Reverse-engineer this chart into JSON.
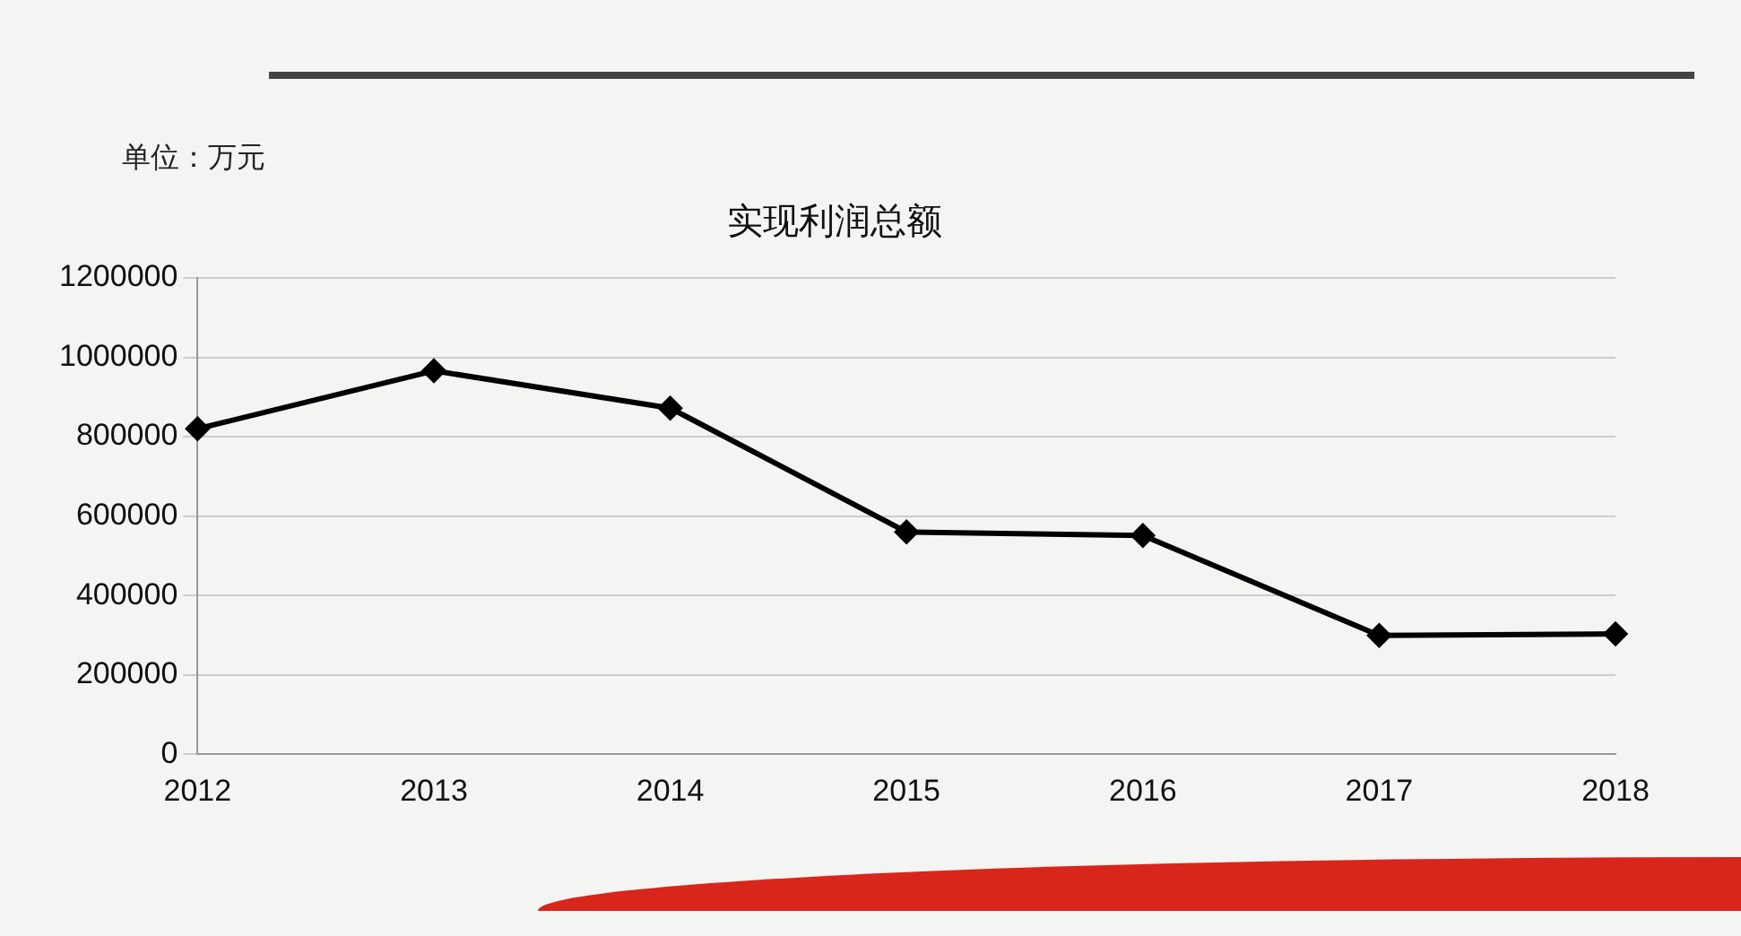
{
  "chart_data": {
    "type": "line",
    "title": "实现利润总额",
    "annotations": [
      "单位：万元"
    ],
    "categories": [
      "2012",
      "2013",
      "2014",
      "2015",
      "2016",
      "2017",
      "2018"
    ],
    "values": [
      820000,
      966000,
      872000,
      560000,
      551000,
      299000,
      303000
    ],
    "color": "#000000",
    "ylim": [
      0,
      1200000
    ],
    "yticks": [
      0,
      200000,
      400000,
      600000,
      800000,
      1000000,
      1200000
    ],
    "grid": "y",
    "marker": "diamond",
    "line_style": "solid"
  }
}
